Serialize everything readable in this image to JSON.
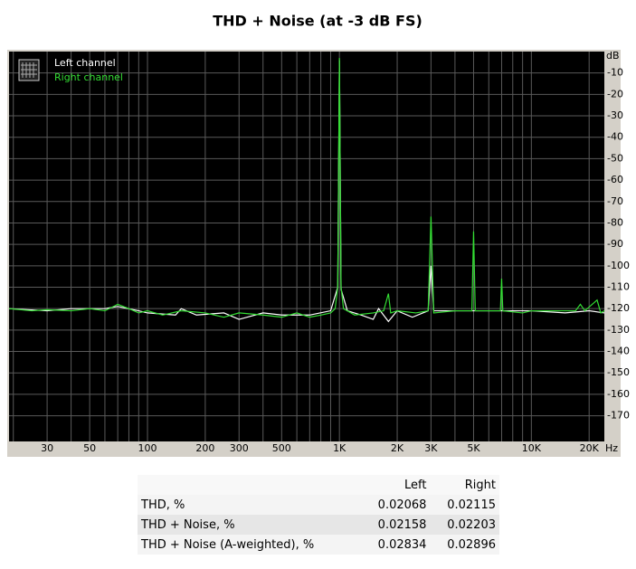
{
  "chart_data": {
    "type": "line",
    "title": "THD + Noise (at -3 dB FS)",
    "x_unit": "Hz",
    "y_unit": "dB",
    "xscale": "log",
    "grid": true,
    "xlim": [
      19,
      24000
    ],
    "ylim": [
      -182,
      0
    ],
    "xticks": [
      30,
      50,
      100,
      200,
      300,
      500,
      {
        "value": 1000,
        "label": "1K"
      },
      {
        "value": 2000,
        "label": "2K"
      },
      {
        "value": 3000,
        "label": "3K"
      },
      {
        "value": 5000,
        "label": "5K"
      },
      {
        "value": 10000,
        "label": "10K"
      },
      {
        "value": 20000,
        "label": "20K"
      }
    ],
    "xgrid": [
      20,
      30,
      40,
      50,
      60,
      70,
      80,
      90,
      100,
      200,
      300,
      400,
      500,
      600,
      700,
      800,
      900,
      1000,
      2000,
      3000,
      4000,
      5000,
      6000,
      7000,
      8000,
      9000,
      10000,
      20000
    ],
    "yticks": [
      -10,
      -20,
      -30,
      -40,
      -50,
      -60,
      -70,
      -80,
      -90,
      -100,
      -110,
      -120,
      -130,
      -140,
      -150,
      -160,
      -170
    ],
    "series": [
      {
        "name": "Left channel",
        "color": "#ffffff",
        "x": [
          19,
          30,
          40,
          60,
          70,
          90,
          100,
          140,
          150,
          180,
          250,
          300,
          400,
          500,
          700,
          900,
          980,
          1000,
          1020,
          1100,
          1300,
          1500,
          1600,
          1800,
          2000,
          2400,
          2900,
          3000,
          3100,
          4000,
          5000,
          7000,
          10000,
          15000,
          20000,
          24000
        ],
        "values": [
          -120,
          -121,
          -120,
          -120,
          -119,
          -121,
          -122,
          -123,
          -120,
          -123,
          -122,
          -125,
          -122,
          -123,
          -123,
          -121,
          -110,
          -4,
          -111,
          -121,
          -123,
          -125,
          -120,
          -126,
          -121,
          -124,
          -121,
          -100,
          -121,
          -121,
          -121,
          -121,
          -121,
          -122,
          -121,
          -122
        ]
      },
      {
        "name": "Right channel",
        "color": "#33dd33",
        "x": [
          19,
          25,
          30,
          40,
          50,
          60,
          70,
          80,
          90,
          100,
          120,
          150,
          200,
          250,
          300,
          400,
          500,
          600,
          700,
          800,
          900,
          950,
          980,
          1000,
          1020,
          1050,
          1200,
          1500,
          1700,
          1800,
          1850,
          2000,
          2500,
          2900,
          3000,
          3100,
          4000,
          4900,
          5000,
          5100,
          6000,
          6900,
          7000,
          7100,
          9000,
          10000,
          13000,
          17000,
          18000,
          19000,
          22000,
          23000,
          24000
        ],
        "values": [
          -120,
          -121,
          -120.5,
          -121,
          -120,
          -121,
          -118,
          -120,
          -122,
          -121,
          -123,
          -121,
          -122,
          -124,
          -122,
          -123,
          -124,
          -122,
          -124,
          -123,
          -122,
          -120,
          -110,
          -3,
          -110,
          -120,
          -123,
          -122,
          -121,
          -113,
          -122,
          -121,
          -122,
          -121,
          -77,
          -122,
          -121,
          -121,
          -84,
          -121,
          -121,
          -121,
          -106,
          -121,
          -122,
          -121,
          -121,
          -121,
          -118,
          -121,
          -116,
          -122,
          -121
        ]
      }
    ]
  },
  "table": {
    "columns": [
      "Left",
      "Right"
    ],
    "rows": [
      [
        "THD, %",
        "0.02068",
        "0.02115"
      ],
      [
        "THD + Noise, %",
        "0.02158",
        "0.02203"
      ],
      [
        "THD + Noise (A-weighted), %",
        "0.02834",
        "0.02896"
      ]
    ]
  }
}
